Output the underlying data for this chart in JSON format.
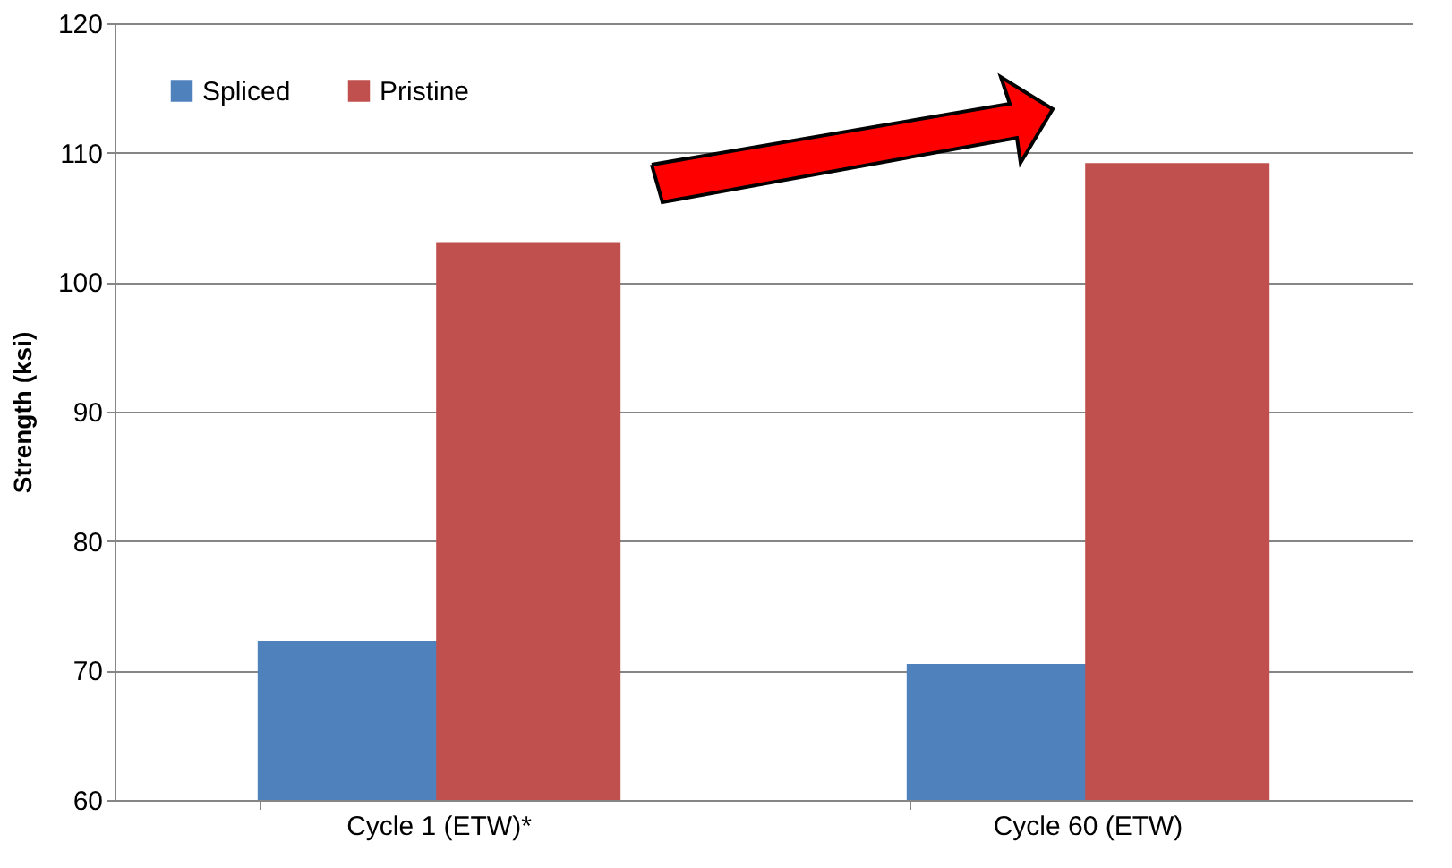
{
  "chart_data": {
    "type": "bar",
    "ylabel": "Strength (ksi)",
    "categories": [
      "Cycle 1 (ETW)*",
      "Cycle 60 (ETW)"
    ],
    "series": [
      {
        "name": "Spliced",
        "color": "#4f81bd",
        "values": [
          72.3,
          70.5
        ]
      },
      {
        "name": "Pristine",
        "color": "#c0504d",
        "values": [
          103.1,
          109.2
        ]
      }
    ],
    "ylim": [
      60,
      120
    ],
    "yticks": [
      60,
      70,
      80,
      90,
      100,
      110,
      120
    ],
    "grid": "y",
    "legend": "top left"
  }
}
